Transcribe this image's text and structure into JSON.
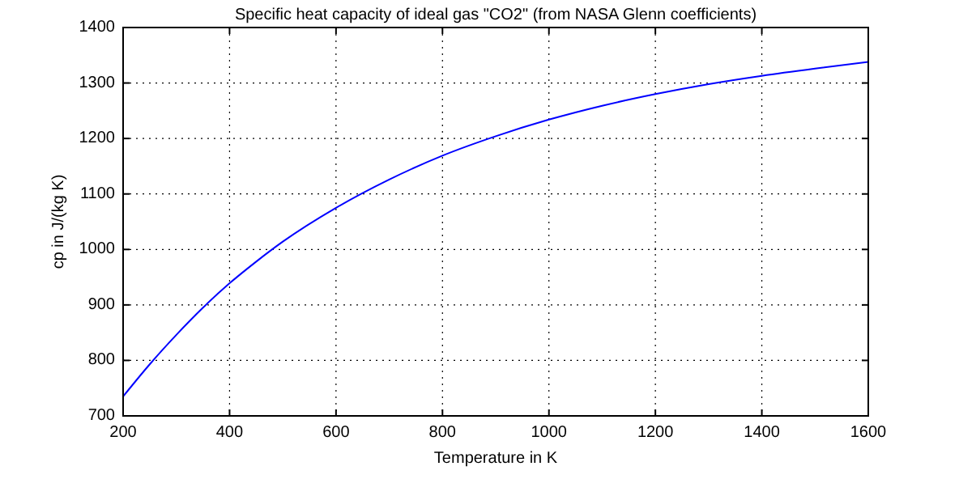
{
  "chart_data": {
    "type": "line",
    "title": "Specific heat capacity of ideal gas \"CO2\" (from NASA Glenn coefficients)",
    "xlabel": "Temperature in K",
    "ylabel": "cp in J/(kg K)",
    "x": [
      200,
      250,
      300,
      350,
      400,
      450,
      500,
      600,
      700,
      800,
      900,
      1000,
      1100,
      1200,
      1300,
      1400,
      1500,
      1600
    ],
    "series": [
      {
        "color": "#0000ff",
        "values": [
          735,
          793,
          846,
          895,
          939,
          978,
          1014,
          1075,
          1126,
          1169,
          1204,
          1234,
          1259,
          1280,
          1298,
          1313,
          1326,
          1338
        ]
      }
    ],
    "xlim": [
      200,
      1600
    ],
    "xticks": [
      200,
      400,
      600,
      800,
      1000,
      1200,
      1400,
      1600
    ],
    "ylim": [
      700,
      1400
    ],
    "yticks": [
      700,
      800,
      900,
      1000,
      1100,
      1200,
      1300,
      1400
    ],
    "grid": true,
    "line_style": "solid",
    "marker": "none"
  }
}
